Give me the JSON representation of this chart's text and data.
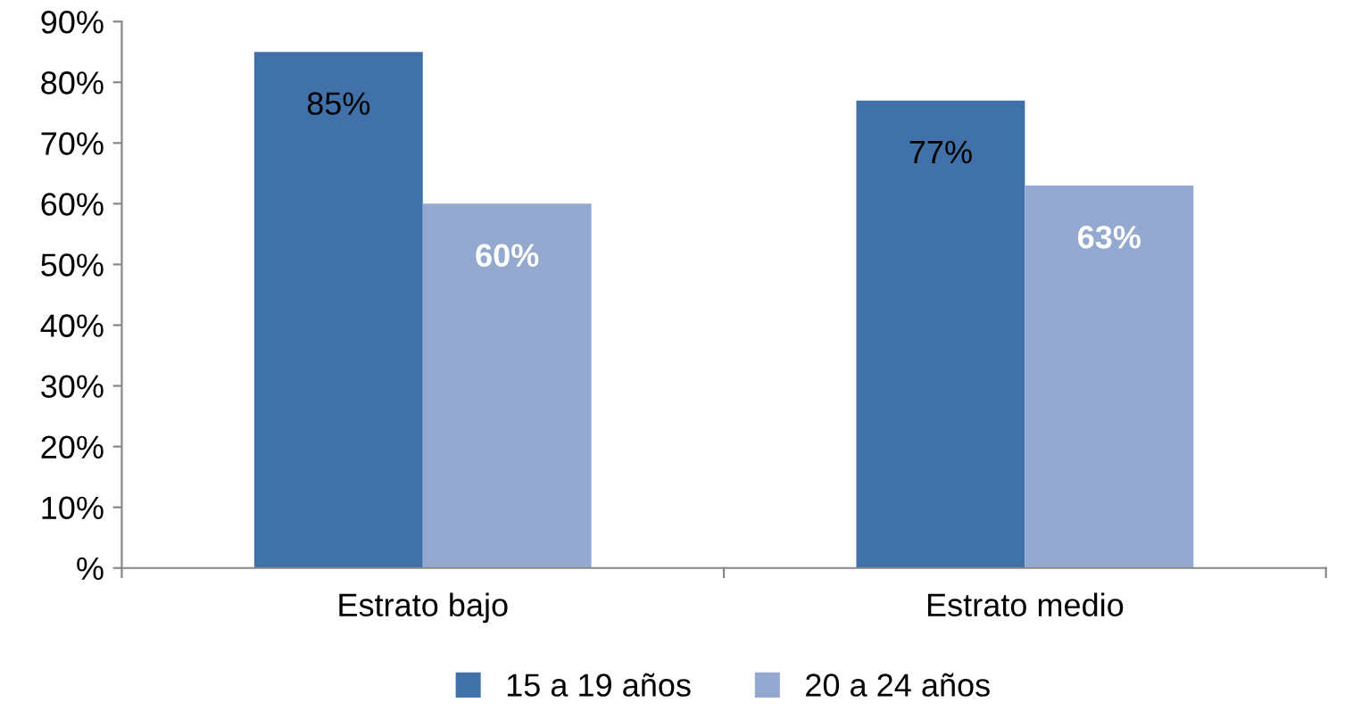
{
  "chart_data": {
    "type": "bar",
    "categories": [
      "Estrato bajo",
      "Estrato medio"
    ],
    "series": [
      {
        "name": "15 a 19 años",
        "color": "#4071a8",
        "values": [
          85,
          77
        ],
        "value_labels": [
          "85%",
          "77%"
        ]
      },
      {
        "name": "20 a 24 años",
        "color": "#93a9cf",
        "values": [
          60,
          63
        ],
        "value_labels": [
          "60%",
          "63%"
        ]
      }
    ],
    "ylim": [
      0,
      90
    ],
    "yticks": [
      {
        "value": 0,
        "label": "%"
      },
      {
        "value": 10,
        "label": "10%"
      },
      {
        "value": 20,
        "label": "20%"
      },
      {
        "value": 30,
        "label": "30%"
      },
      {
        "value": 40,
        "label": "40%"
      },
      {
        "value": 50,
        "label": "50%"
      },
      {
        "value": 60,
        "label": "60%"
      },
      {
        "value": 70,
        "label": "70%"
      },
      {
        "value": 80,
        "label": "80%"
      },
      {
        "value": 90,
        "label": "90%"
      }
    ],
    "grid": false,
    "legend": "bottom"
  }
}
